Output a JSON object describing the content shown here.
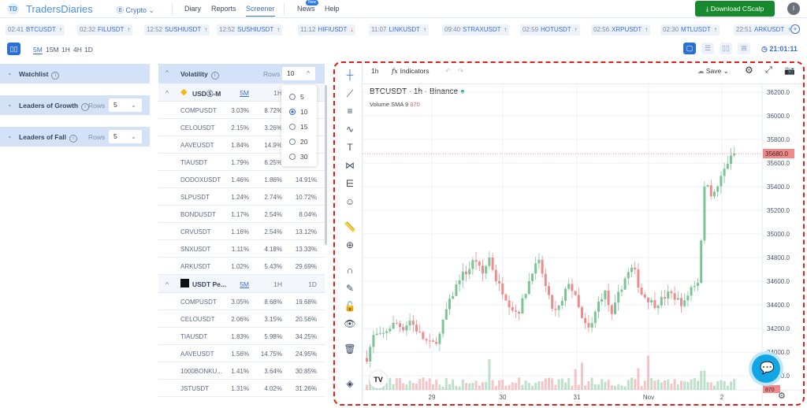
{
  "header": {
    "brand": "TradersDiaries",
    "logo": "TD",
    "market": "Crypto",
    "nav": [
      "Diary",
      "Reports",
      "Screener"
    ],
    "active": "Screener",
    "news": "News",
    "news_badge": "New",
    "help": "Help",
    "download": "Download CScalp",
    "avatar": "I"
  },
  "ticker": [
    {
      "time": "02:41",
      "symbol": "BTCUSDT",
      "dir": "up"
    },
    {
      "time": "02:32",
      "symbol": "FILUSDT",
      "dir": "up"
    },
    {
      "time": "12:52",
      "symbol": "SUSHIUSDT",
      "dir": "up"
    },
    {
      "time": "12:52",
      "symbol": "SUSHIUSDT",
      "dir": "up"
    },
    {
      "time": "11:12",
      "symbol": "HIFIUSDT",
      "dir": "down"
    },
    {
      "time": "11:07",
      "symbol": "LINKUSDT",
      "dir": "up"
    },
    {
      "time": "09:40",
      "symbol": "STRAXUSDT",
      "dir": "up"
    },
    {
      "time": "02:59",
      "symbol": "HOTUSDT",
      "dir": "up"
    },
    {
      "time": "02:56",
      "symbol": "XRPUSDT",
      "dir": "up"
    },
    {
      "time": "02:30",
      "symbol": "MTLUSDT",
      "dir": "up"
    },
    {
      "time": "22:51",
      "symbol": "ARKUSDT",
      "dir": "up"
    }
  ],
  "arrows": {
    "up": "↑",
    "down": "↓"
  },
  "timeframes": [
    "5M",
    "15M",
    "1H",
    "4H",
    "1D"
  ],
  "active_tf": "5M",
  "clock": "21:01:11",
  "left_panels": [
    {
      "title": "Watchlist"
    },
    {
      "title": "Leaders of Growth",
      "rows_label": "Rows",
      "rows": "5"
    },
    {
      "title": "Leaders of Fall",
      "rows_label": "Rows",
      "rows": "5"
    }
  ],
  "volatility": {
    "title": "Volatility",
    "rows_label": "Rows",
    "rows": "10",
    "options": [
      "5",
      "10",
      "15",
      "20",
      "30"
    ],
    "selected": "10",
    "groups": [
      {
        "name": "USDⓈ-M",
        "cols": [
          "5M",
          "1H",
          ""
        ],
        "rows": [
          [
            "COMPUSDT",
            "3.03%",
            "8.72%",
            ""
          ],
          [
            "CELOUSDT",
            "2.15%",
            "3.26%",
            ""
          ],
          [
            "AAVEUSDT",
            "1.84%",
            "14.9%",
            ""
          ],
          [
            "TIAUSDT",
            "1.79%",
            "6.25%",
            ""
          ],
          [
            "DODOXUSDT",
            "1.46%",
            "1.86%",
            "14.91%"
          ],
          [
            "SLPUSDT",
            "1.24%",
            "2.74%",
            "10.72%"
          ],
          [
            "BONDUSDT",
            "1.17%",
            "2.54%",
            "8.04%"
          ],
          [
            "CRVUSDT",
            "1.16%",
            "2.54%",
            "13.12%"
          ],
          [
            "SNXUSDT",
            "1.11%",
            "4.18%",
            "13.33%"
          ],
          [
            "ARKUSDT",
            "1.02%",
            "5.43%",
            "29.69%"
          ]
        ]
      },
      {
        "name": "USDT Pe...",
        "cols": [
          "5M",
          "1H",
          "1D"
        ],
        "rows": [
          [
            "COMPUSDT",
            "3.05%",
            "8.68%",
            "19.68%"
          ],
          [
            "CELOUSDT",
            "2.06%",
            "3.15%",
            "20.56%"
          ],
          [
            "TIAUSDT",
            "1.83%",
            "5.98%",
            "34.25%"
          ],
          [
            "AAVEUSDT",
            "1.56%",
            "14.75%",
            "24.95%"
          ],
          [
            "1000BONKU...",
            "1.41%",
            "3.64%",
            "30.85%"
          ],
          [
            "JSTUSDT",
            "1.31%",
            "4.02%",
            "31.26%"
          ]
        ]
      }
    ]
  },
  "chart": {
    "interval": "1h",
    "indicators": "Indicators",
    "save": "Save",
    "title": "BTCUSDT · 1h · Binance",
    "volume_label": "Volume SMA 9",
    "volume_value": "870",
    "last_price": "35680.0",
    "y_ticks": [
      "36200.0",
      "36000.0",
      "35800.0",
      "35600.0",
      "35400.0",
      "35200.0",
      "35000.0",
      "34800.0",
      "34600.0",
      "34400.0",
      "34200.0",
      "34000.0",
      "33800.0"
    ],
    "x_ticks": [
      "29",
      "30",
      "31",
      "Nov",
      "2"
    ],
    "up_color": "#7cc495",
    "down_color": "#ef8b8b",
    "price_path": [
      33950,
      34150,
      34130,
      34200,
      34250,
      34200,
      34270,
      34180,
      34100,
      34060,
      34120,
      34350,
      34500,
      34650,
      34680,
      34800,
      34650,
      34800,
      34600,
      34500,
      34380,
      34330,
      34500,
      34700,
      34760,
      34500,
      34330,
      34400,
      34600,
      34450,
      34250,
      34180,
      34400,
      34520,
      34300,
      34500,
      34650,
      34720,
      34500,
      34450,
      34400,
      34450,
      34500,
      34450,
      34400,
      34550,
      34600,
      35500,
      35300,
      35450,
      35600,
      35680
    ]
  }
}
